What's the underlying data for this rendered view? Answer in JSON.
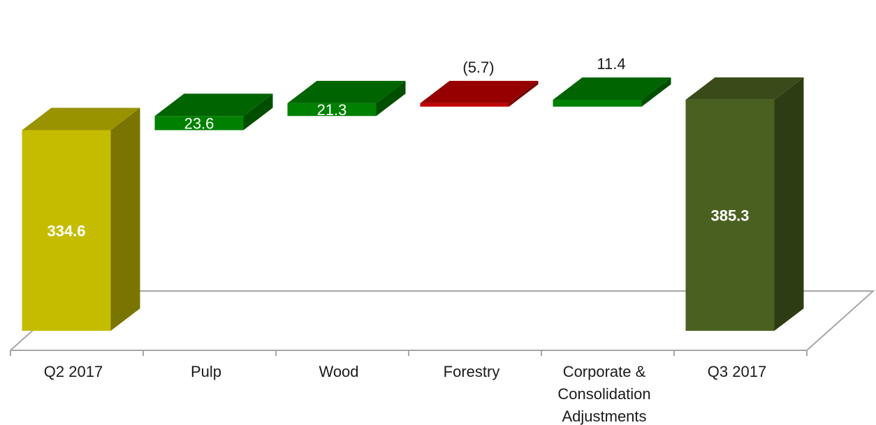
{
  "chart_data": {
    "type": "bar",
    "subtype": "waterfall-3d",
    "categories": [
      "Q2 2017",
      "Pulp",
      "Wood",
      "Forestry",
      "Corporate & Consolidation Adjustments",
      "Q3 2017"
    ],
    "category_lines": [
      [
        "Q2 2017"
      ],
      [
        "Pulp"
      ],
      [
        "Wood"
      ],
      [
        "Forestry"
      ],
      [
        "Corporate &",
        "Consolidation",
        "Adjustments"
      ],
      [
        "Q3 2017"
      ]
    ],
    "values": [
      334.6,
      23.6,
      21.3,
      -5.7,
      11.4,
      385.3
    ],
    "kinds": [
      "total",
      "delta",
      "delta",
      "delta",
      "delta",
      "total"
    ],
    "value_labels": [
      "334.6",
      "23.6",
      "21.3",
      "(5.7)",
      "11.4",
      "385.3"
    ],
    "label_position": [
      "inside",
      "inside",
      "inside",
      "above",
      "above",
      "inside"
    ],
    "label_bold": [
      true,
      false,
      false,
      false,
      false,
      true
    ],
    "colors": {
      "start_total": "#c5bc00",
      "end_total": "#4a6020",
      "increase": "#008000",
      "decrease": "#c00000",
      "axis_line": "#a6a6a6"
    },
    "grid": false,
    "legend": "none"
  }
}
